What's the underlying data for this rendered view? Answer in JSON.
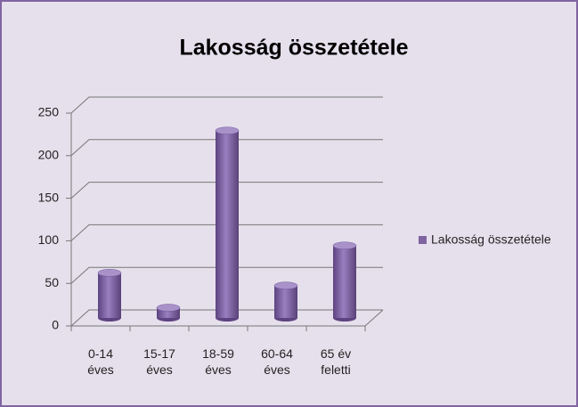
{
  "chart_data": {
    "type": "bar",
    "title": "Lakosság összetétele",
    "categories": [
      "0-14 éves",
      "15-17 éves",
      "18-59 éves",
      "60-64 éves",
      "65 év feletti"
    ],
    "series": [
      {
        "name": "Lakosság összetétele",
        "color": "#8064a2",
        "values": [
          53,
          12,
          220,
          38,
          85
        ]
      }
    ],
    "ylim": [
      0,
      250
    ],
    "yticks": [
      0,
      50,
      100,
      150,
      200,
      250
    ],
    "grid": true,
    "legend": "right"
  }
}
